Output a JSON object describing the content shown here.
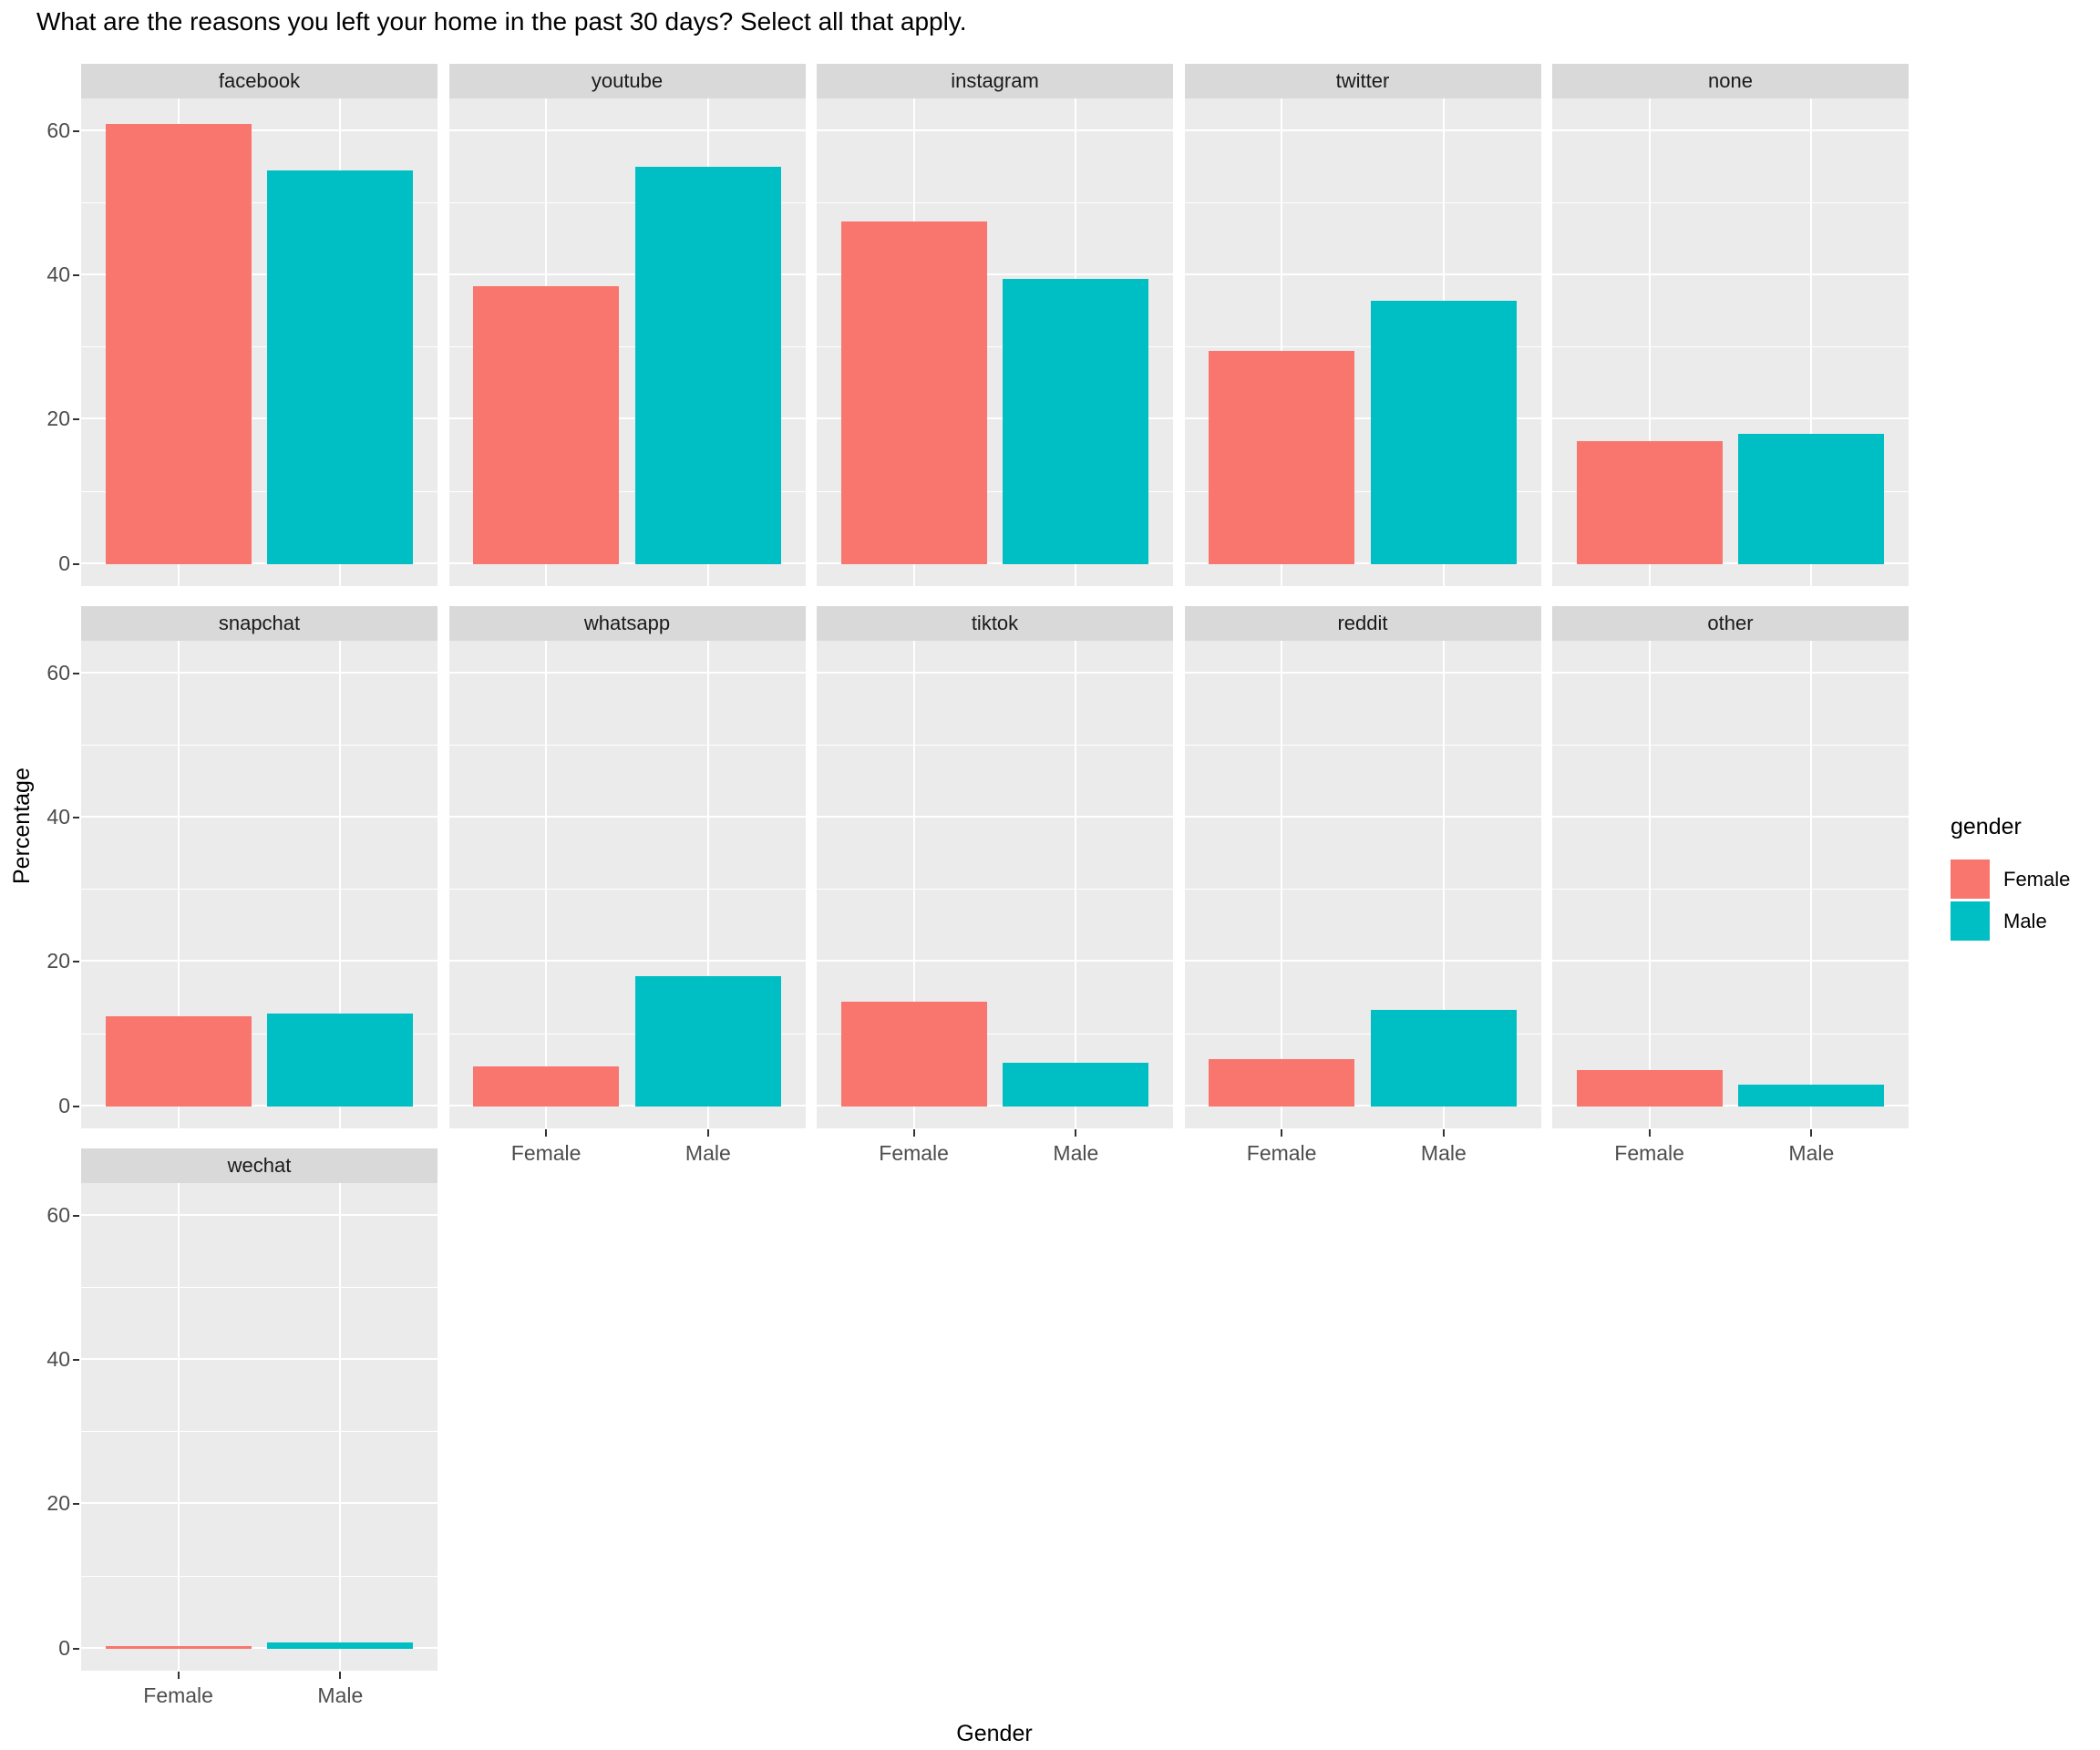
{
  "title": "What are the reasons you left your home in the past 30 days? Select all that apply.",
  "chart_data": {
    "type": "bar",
    "title": "What are the reasons you left your home in the past 30 days? Select all that apply.",
    "xlabel": "Gender",
    "ylabel": "Percentage",
    "categories": [
      "Female",
      "Male"
    ],
    "yticks": [
      0,
      20,
      40,
      60
    ],
    "ylim": [
      -3.1,
      64.4
    ],
    "grid": "on",
    "legend_position": "right",
    "legend": {
      "title": "gender",
      "entries": [
        {
          "label": "Female",
          "color": "#F8766D"
        },
        {
          "label": "Male",
          "color": "#00BFC4"
        }
      ]
    },
    "facets": [
      {
        "label": "facebook",
        "values": {
          "Female": 61.0,
          "Male": 54.5
        }
      },
      {
        "label": "youtube",
        "values": {
          "Female": 38.5,
          "Male": 55.0
        }
      },
      {
        "label": "instagram",
        "values": {
          "Female": 47.5,
          "Male": 39.5
        }
      },
      {
        "label": "twitter",
        "values": {
          "Female": 29.5,
          "Male": 36.5
        }
      },
      {
        "label": "none",
        "values": {
          "Female": 17.0,
          "Male": 18.0
        }
      },
      {
        "label": "snapchat",
        "values": {
          "Female": 12.5,
          "Male": 12.8
        }
      },
      {
        "label": "whatsapp",
        "values": {
          "Female": 5.5,
          "Male": 18.0
        }
      },
      {
        "label": "tiktok",
        "values": {
          "Female": 14.5,
          "Male": 6.0
        }
      },
      {
        "label": "reddit",
        "values": {
          "Female": 6.5,
          "Male": 13.3
        }
      },
      {
        "label": "other",
        "values": {
          "Female": 5.0,
          "Male": 3.0
        }
      },
      {
        "label": "wechat",
        "values": {
          "Female": 0.3,
          "Male": 0.9
        }
      }
    ]
  }
}
